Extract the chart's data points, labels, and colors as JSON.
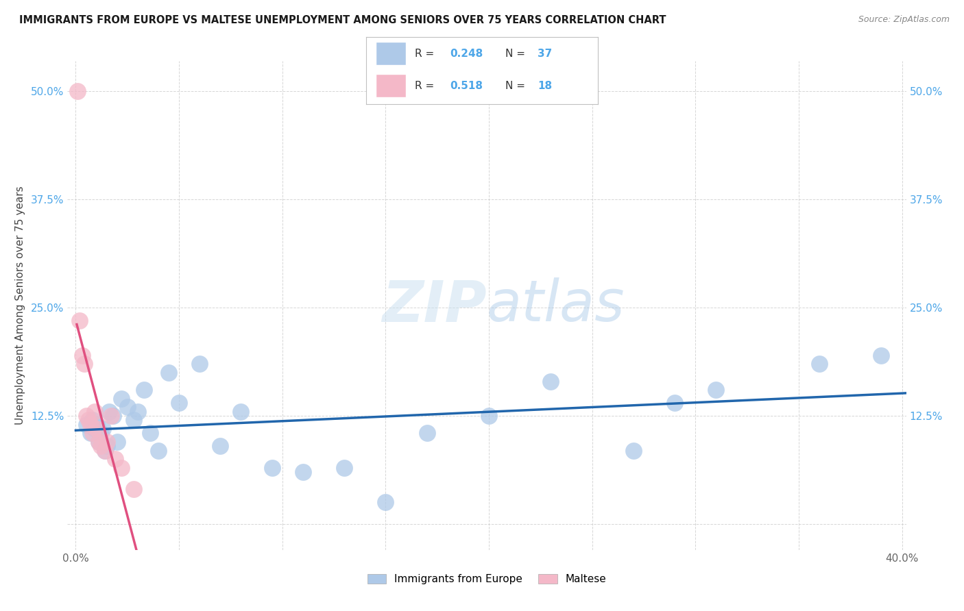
{
  "title": "IMMIGRANTS FROM EUROPE VS MALTESE UNEMPLOYMENT AMONG SENIORS OVER 75 YEARS CORRELATION CHART",
  "source": "Source: ZipAtlas.com",
  "ylabel": "Unemployment Among Seniors over 75 years",
  "xlim": [
    -0.004,
    0.402
  ],
  "ylim": [
    -0.03,
    0.535
  ],
  "xtick_positions": [
    0.0,
    0.05,
    0.1,
    0.15,
    0.2,
    0.25,
    0.3,
    0.35,
    0.4
  ],
  "xtick_labels": [
    "0.0%",
    "",
    "",
    "",
    "",
    "",
    "",
    "",
    "40.0%"
  ],
  "ytick_positions": [
    0.0,
    0.125,
    0.25,
    0.375,
    0.5
  ],
  "ytick_labels_left": [
    "",
    "12.5%",
    "25.0%",
    "37.5%",
    "50.0%"
  ],
  "ytick_labels_right": [
    "",
    "12.5%",
    "25.0%",
    "37.5%",
    "50.0%"
  ],
  "color_blue_fill": "#aec9e8",
  "color_pink_fill": "#f4b8c8",
  "color_blue_line": "#2166ac",
  "color_pink_line": "#e05080",
  "color_blue_text": "#4da6e8",
  "color_dark_text": "#333333",
  "color_grid": "#cccccc",
  "watermark_color": "#c8dff0",
  "legend_r1": "0.248",
  "legend_n1": "37",
  "legend_r2": "0.518",
  "legend_n2": "18",
  "blue_scatter_x": [
    0.005,
    0.007,
    0.008,
    0.009,
    0.01,
    0.011,
    0.012,
    0.013,
    0.014,
    0.015,
    0.016,
    0.018,
    0.02,
    0.022,
    0.025,
    0.028,
    0.03,
    0.033,
    0.036,
    0.04,
    0.045,
    0.05,
    0.06,
    0.07,
    0.08,
    0.095,
    0.11,
    0.13,
    0.15,
    0.17,
    0.2,
    0.23,
    0.27,
    0.29,
    0.31,
    0.36,
    0.39
  ],
  "blue_scatter_y": [
    0.115,
    0.105,
    0.12,
    0.11,
    0.115,
    0.095,
    0.105,
    0.11,
    0.085,
    0.09,
    0.13,
    0.125,
    0.095,
    0.145,
    0.135,
    0.12,
    0.13,
    0.155,
    0.105,
    0.085,
    0.175,
    0.14,
    0.185,
    0.09,
    0.13,
    0.065,
    0.06,
    0.065,
    0.025,
    0.105,
    0.125,
    0.165,
    0.085,
    0.14,
    0.155,
    0.185,
    0.195
  ],
  "pink_scatter_x": [
    0.001,
    0.002,
    0.003,
    0.004,
    0.005,
    0.006,
    0.007,
    0.008,
    0.009,
    0.01,
    0.011,
    0.012,
    0.014,
    0.015,
    0.017,
    0.019,
    0.022,
    0.028
  ],
  "pink_scatter_y": [
    0.5,
    0.235,
    0.195,
    0.185,
    0.125,
    0.12,
    0.115,
    0.105,
    0.13,
    0.11,
    0.095,
    0.09,
    0.085,
    0.095,
    0.125,
    0.075,
    0.065,
    0.04
  ]
}
